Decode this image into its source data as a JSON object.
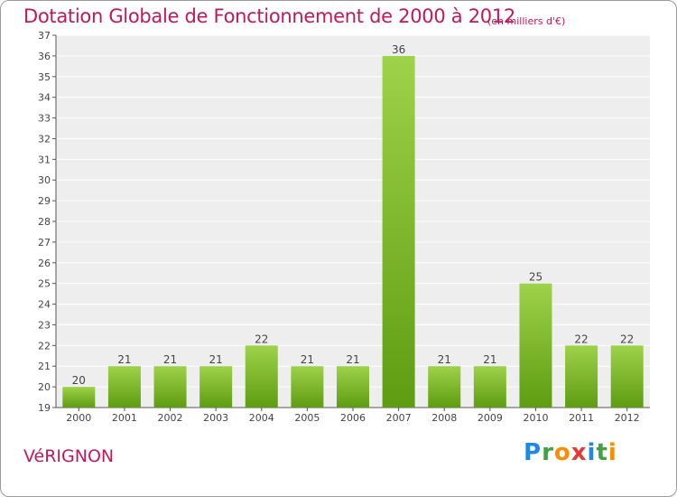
{
  "header": {
    "title": "Dotation Globale de Fonctionnement de 2000 à 2012",
    "subtitle": "(en milliers d'€)"
  },
  "footer": {
    "place": "VéRIGNON",
    "logo": {
      "text": "Proxiti",
      "letters": [
        {
          "ch": "P",
          "color": "#1e88e5"
        },
        {
          "ch": "r",
          "color": "#43a047"
        },
        {
          "ch": "o",
          "color": "#fb8c00"
        },
        {
          "ch": "x",
          "color": "#e53935"
        },
        {
          "ch": "i",
          "color": "#1e88e5"
        },
        {
          "ch": "t",
          "color": "#43a047"
        },
        {
          "ch": "i",
          "color": "#fb8c00"
        }
      ]
    }
  },
  "chart_data": {
    "type": "bar",
    "title": "Dotation Globale de Fonctionnement de 2000 à 2012",
    "categories": [
      "2000",
      "2001",
      "2002",
      "2003",
      "2004",
      "2005",
      "2006",
      "2007",
      "2008",
      "2009",
      "2010",
      "2011",
      "2012"
    ],
    "values": [
      20,
      21,
      21,
      21,
      22,
      21,
      21,
      36,
      21,
      21,
      25,
      22,
      22
    ],
    "ylim": [
      19,
      37
    ],
    "yticks": [
      19,
      20,
      21,
      22,
      23,
      24,
      25,
      26,
      27,
      28,
      29,
      30,
      31,
      32,
      33,
      34,
      35,
      36,
      37
    ],
    "grid": true,
    "data_labels": true,
    "colors": {
      "bar_top": "#9ed24a",
      "bar_bottom": "#5e9c12",
      "plot_bg": "#eeeeee",
      "grid": "#ffffff",
      "axis": "#555555",
      "label_text": "#444444"
    }
  }
}
